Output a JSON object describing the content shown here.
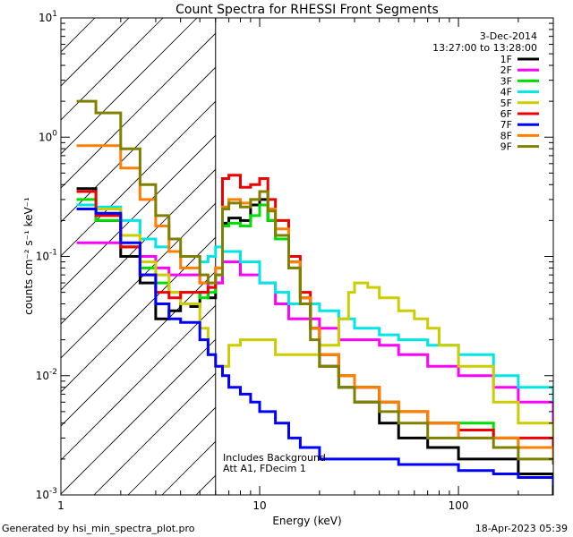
{
  "chart_data": {
    "type": "line",
    "title": "Count Spectra for RHESSI Front Segments",
    "xlabel": "Energy (keV)",
    "ylabel": "counts cm⁻² s⁻¹ keV⁻¹",
    "x_scale": "log",
    "y_scale": "log",
    "xlim": [
      1,
      300
    ],
    "ylim": [
      0.001,
      10
    ],
    "x_ticks": [
      {
        "value": 1,
        "label": "1"
      },
      {
        "value": 10,
        "label": "10"
      },
      {
        "value": 100,
        "label": "100"
      }
    ],
    "y_ticks": [
      {
        "value": 0.001,
        "base": "10",
        "exp": "-3"
      },
      {
        "value": 0.01,
        "base": "10",
        "exp": "-2"
      },
      {
        "value": 0.1,
        "base": "10",
        "exp": "-1"
      },
      {
        "value": 1,
        "base": "10",
        "exp": "0"
      },
      {
        "value": 10,
        "base": "10",
        "exp": "1"
      }
    ],
    "date": "3-Dec-2014",
    "time_range": "13:27:00 to 13:28:00",
    "annotation_lines": [
      "Includes Background",
      "Att A1, FDecim 1"
    ],
    "hatched_region": {
      "x_from": 1,
      "x_to": 6
    },
    "series": [
      {
        "name": "1F",
        "color": "#000000",
        "points": [
          [
            1.2,
            0.37
          ],
          [
            1.5,
            0.2
          ],
          [
            2,
            0.1
          ],
          [
            2.5,
            0.06
          ],
          [
            3,
            0.03
          ],
          [
            3.5,
            0.035
          ],
          [
            4,
            0.04
          ],
          [
            4.5,
            0.038
          ],
          [
            5,
            0.05
          ],
          [
            5.5,
            0.045
          ],
          [
            6,
            0.06
          ],
          [
            6.5,
            0.19
          ],
          [
            7,
            0.21
          ],
          [
            8,
            0.2
          ],
          [
            9,
            0.27
          ],
          [
            10,
            0.3
          ],
          [
            11,
            0.2
          ],
          [
            12,
            0.15
          ],
          [
            14,
            0.09
          ],
          [
            16,
            0.045
          ],
          [
            18,
            0.025
          ],
          [
            20,
            0.012
          ],
          [
            25,
            0.008
          ],
          [
            30,
            0.006
          ],
          [
            40,
            0.004
          ],
          [
            50,
            0.003
          ],
          [
            70,
            0.0025
          ],
          [
            100,
            0.002
          ],
          [
            150,
            0.002
          ],
          [
            200,
            0.0015
          ],
          [
            300,
            0.001
          ]
        ]
      },
      {
        "name": "2F",
        "color": "#ff00ff",
        "points": [
          [
            1.2,
            0.13
          ],
          [
            1.5,
            0.13
          ],
          [
            2,
            0.12
          ],
          [
            2.5,
            0.1
          ],
          [
            3,
            0.08
          ],
          [
            3.5,
            0.07
          ],
          [
            4,
            0.07
          ],
          [
            5,
            0.06
          ],
          [
            5.5,
            0.055
          ],
          [
            6,
            0.06
          ],
          [
            6.5,
            0.09
          ],
          [
            8,
            0.07
          ],
          [
            10,
            0.06
          ],
          [
            12,
            0.04
          ],
          [
            14,
            0.03
          ],
          [
            16,
            0.03
          ],
          [
            20,
            0.025
          ],
          [
            25,
            0.02
          ],
          [
            30,
            0.02
          ],
          [
            40,
            0.018
          ],
          [
            50,
            0.015
          ],
          [
            70,
            0.012
          ],
          [
            100,
            0.01
          ],
          [
            150,
            0.008
          ],
          [
            200,
            0.006
          ],
          [
            300,
            0.004
          ]
        ]
      },
      {
        "name": "3F",
        "color": "#00dd00",
        "points": [
          [
            1.2,
            0.3
          ],
          [
            1.5,
            0.2
          ],
          [
            2,
            0.12
          ],
          [
            2.5,
            0.08
          ],
          [
            3,
            0.06
          ],
          [
            3.5,
            0.05
          ],
          [
            4,
            0.05
          ],
          [
            5,
            0.045
          ],
          [
            5.5,
            0.05
          ],
          [
            6,
            0.07
          ],
          [
            6.5,
            0.18
          ],
          [
            7,
            0.19
          ],
          [
            8,
            0.18
          ],
          [
            9,
            0.22
          ],
          [
            10,
            0.27
          ],
          [
            11,
            0.2
          ],
          [
            12,
            0.14
          ],
          [
            14,
            0.08
          ],
          [
            16,
            0.04
          ],
          [
            18,
            0.025
          ],
          [
            20,
            0.015
          ],
          [
            25,
            0.01
          ],
          [
            30,
            0.008
          ],
          [
            40,
            0.006
          ],
          [
            50,
            0.005
          ],
          [
            70,
            0.004
          ],
          [
            100,
            0.004
          ],
          [
            150,
            0.003
          ],
          [
            200,
            0.0025
          ],
          [
            300,
            0.002
          ]
        ]
      },
      {
        "name": "4F",
        "color": "#00e5e5",
        "points": [
          [
            1.2,
            0.27
          ],
          [
            1.5,
            0.26
          ],
          [
            2,
            0.2
          ],
          [
            2.5,
            0.14
          ],
          [
            3,
            0.12
          ],
          [
            3.5,
            0.11
          ],
          [
            4,
            0.1
          ],
          [
            5,
            0.09
          ],
          [
            5.5,
            0.1
          ],
          [
            6,
            0.12
          ],
          [
            6.5,
            0.11
          ],
          [
            8,
            0.09
          ],
          [
            10,
            0.06
          ],
          [
            12,
            0.05
          ],
          [
            14,
            0.04
          ],
          [
            16,
            0.04
          ],
          [
            20,
            0.035
          ],
          [
            25,
            0.03
          ],
          [
            30,
            0.025
          ],
          [
            40,
            0.022
          ],
          [
            50,
            0.02
          ],
          [
            70,
            0.018
          ],
          [
            100,
            0.015
          ],
          [
            150,
            0.01
          ],
          [
            200,
            0.008
          ],
          [
            300,
            0.006
          ]
        ]
      },
      {
        "name": "5F",
        "color": "#cccc00",
        "points": [
          [
            1.2,
            0.35
          ],
          [
            1.5,
            0.25
          ],
          [
            2,
            0.15
          ],
          [
            2.5,
            0.09
          ],
          [
            3,
            0.07
          ],
          [
            3.5,
            0.05
          ],
          [
            4,
            0.04
          ],
          [
            5,
            0.025
          ],
          [
            5.5,
            0.015
          ],
          [
            6,
            0.012
          ],
          [
            7,
            0.018
          ],
          [
            8,
            0.02
          ],
          [
            10,
            0.02
          ],
          [
            12,
            0.015
          ],
          [
            14,
            0.015
          ],
          [
            16,
            0.015
          ],
          [
            20,
            0.018
          ],
          [
            25,
            0.03
          ],
          [
            28,
            0.05
          ],
          [
            30,
            0.06
          ],
          [
            35,
            0.055
          ],
          [
            40,
            0.045
          ],
          [
            50,
            0.035
          ],
          [
            60,
            0.03
          ],
          [
            70,
            0.025
          ],
          [
            80,
            0.018
          ],
          [
            100,
            0.012
          ],
          [
            150,
            0.006
          ],
          [
            200,
            0.004
          ],
          [
            300,
            0.002
          ]
        ]
      },
      {
        "name": "6F",
        "color": "#ee0000",
        "points": [
          [
            1.2,
            0.35
          ],
          [
            1.5,
            0.22
          ],
          [
            2,
            0.12
          ],
          [
            2.5,
            0.07
          ],
          [
            3,
            0.05
          ],
          [
            3.5,
            0.045
          ],
          [
            4,
            0.05
          ],
          [
            5,
            0.05
          ],
          [
            5.5,
            0.055
          ],
          [
            6,
            0.08
          ],
          [
            6.5,
            0.45
          ],
          [
            7,
            0.48
          ],
          [
            8,
            0.38
          ],
          [
            9,
            0.4
          ],
          [
            10,
            0.45
          ],
          [
            11,
            0.3
          ],
          [
            12,
            0.2
          ],
          [
            14,
            0.1
          ],
          [
            16,
            0.05
          ],
          [
            18,
            0.025
          ],
          [
            20,
            0.015
          ],
          [
            25,
            0.01
          ],
          [
            30,
            0.008
          ],
          [
            40,
            0.006
          ],
          [
            50,
            0.005
          ],
          [
            70,
            0.004
          ],
          [
            100,
            0.0035
          ],
          [
            150,
            0.003
          ],
          [
            200,
            0.003
          ],
          [
            300,
            0.002
          ]
        ]
      },
      {
        "name": "7F",
        "color": "#0000ff",
        "points": [
          [
            1.2,
            0.25
          ],
          [
            1.5,
            0.23
          ],
          [
            2,
            0.13
          ],
          [
            2.5,
            0.07
          ],
          [
            3,
            0.04
          ],
          [
            3.5,
            0.03
          ],
          [
            4,
            0.028
          ],
          [
            5,
            0.02
          ],
          [
            5.5,
            0.015
          ],
          [
            6,
            0.012
          ],
          [
            6.5,
            0.01
          ],
          [
            7,
            0.008
          ],
          [
            8,
            0.007
          ],
          [
            9,
            0.006
          ],
          [
            10,
            0.005
          ],
          [
            12,
            0.004
          ],
          [
            14,
            0.003
          ],
          [
            16,
            0.0025
          ],
          [
            20,
            0.002
          ],
          [
            25,
            0.002
          ],
          [
            30,
            0.002
          ],
          [
            40,
            0.002
          ],
          [
            50,
            0.0018
          ],
          [
            70,
            0.0018
          ],
          [
            100,
            0.0016
          ],
          [
            150,
            0.0015
          ],
          [
            200,
            0.0014
          ],
          [
            300,
            0.0012
          ]
        ]
      },
      {
        "name": "8F",
        "color": "#ff8000",
        "points": [
          [
            1.2,
            0.85
          ],
          [
            1.5,
            0.85
          ],
          [
            2,
            0.55
          ],
          [
            2.5,
            0.3
          ],
          [
            3,
            0.18
          ],
          [
            3.5,
            0.11
          ],
          [
            4,
            0.08
          ],
          [
            5,
            0.06
          ],
          [
            5.5,
            0.06
          ],
          [
            6,
            0.08
          ],
          [
            6.5,
            0.26
          ],
          [
            7,
            0.3
          ],
          [
            8,
            0.28
          ],
          [
            9,
            0.3
          ],
          [
            10,
            0.35
          ],
          [
            11,
            0.25
          ],
          [
            12,
            0.17
          ],
          [
            14,
            0.09
          ],
          [
            16,
            0.045
          ],
          [
            18,
            0.025
          ],
          [
            20,
            0.015
          ],
          [
            25,
            0.01
          ],
          [
            30,
            0.008
          ],
          [
            40,
            0.006
          ],
          [
            50,
            0.005
          ],
          [
            70,
            0.004
          ],
          [
            100,
            0.003
          ],
          [
            150,
            0.003
          ],
          [
            200,
            0.0025
          ],
          [
            300,
            0.002
          ]
        ]
      },
      {
        "name": "9F",
        "color": "#808000",
        "points": [
          [
            1.2,
            2.0
          ],
          [
            1.5,
            1.6
          ],
          [
            2,
            0.8
          ],
          [
            2.5,
            0.4
          ],
          [
            3,
            0.22
          ],
          [
            3.5,
            0.14
          ],
          [
            4,
            0.1
          ],
          [
            5,
            0.07
          ],
          [
            5.5,
            0.06
          ],
          [
            6,
            0.07
          ],
          [
            6.5,
            0.25
          ],
          [
            7,
            0.28
          ],
          [
            8,
            0.26
          ],
          [
            9,
            0.3
          ],
          [
            10,
            0.35
          ],
          [
            11,
            0.24
          ],
          [
            12,
            0.15
          ],
          [
            14,
            0.08
          ],
          [
            16,
            0.04
          ],
          [
            18,
            0.02
          ],
          [
            20,
            0.012
          ],
          [
            25,
            0.008
          ],
          [
            30,
            0.006
          ],
          [
            40,
            0.005
          ],
          [
            50,
            0.004
          ],
          [
            70,
            0.003
          ],
          [
            100,
            0.003
          ],
          [
            150,
            0.0025
          ],
          [
            200,
            0.002
          ],
          [
            300,
            0.0018
          ]
        ]
      }
    ]
  },
  "footer": {
    "generated_by": "Generated by hsi_min_spectra_plot.pro",
    "timestamp": "18-Apr-2023 05:39"
  }
}
